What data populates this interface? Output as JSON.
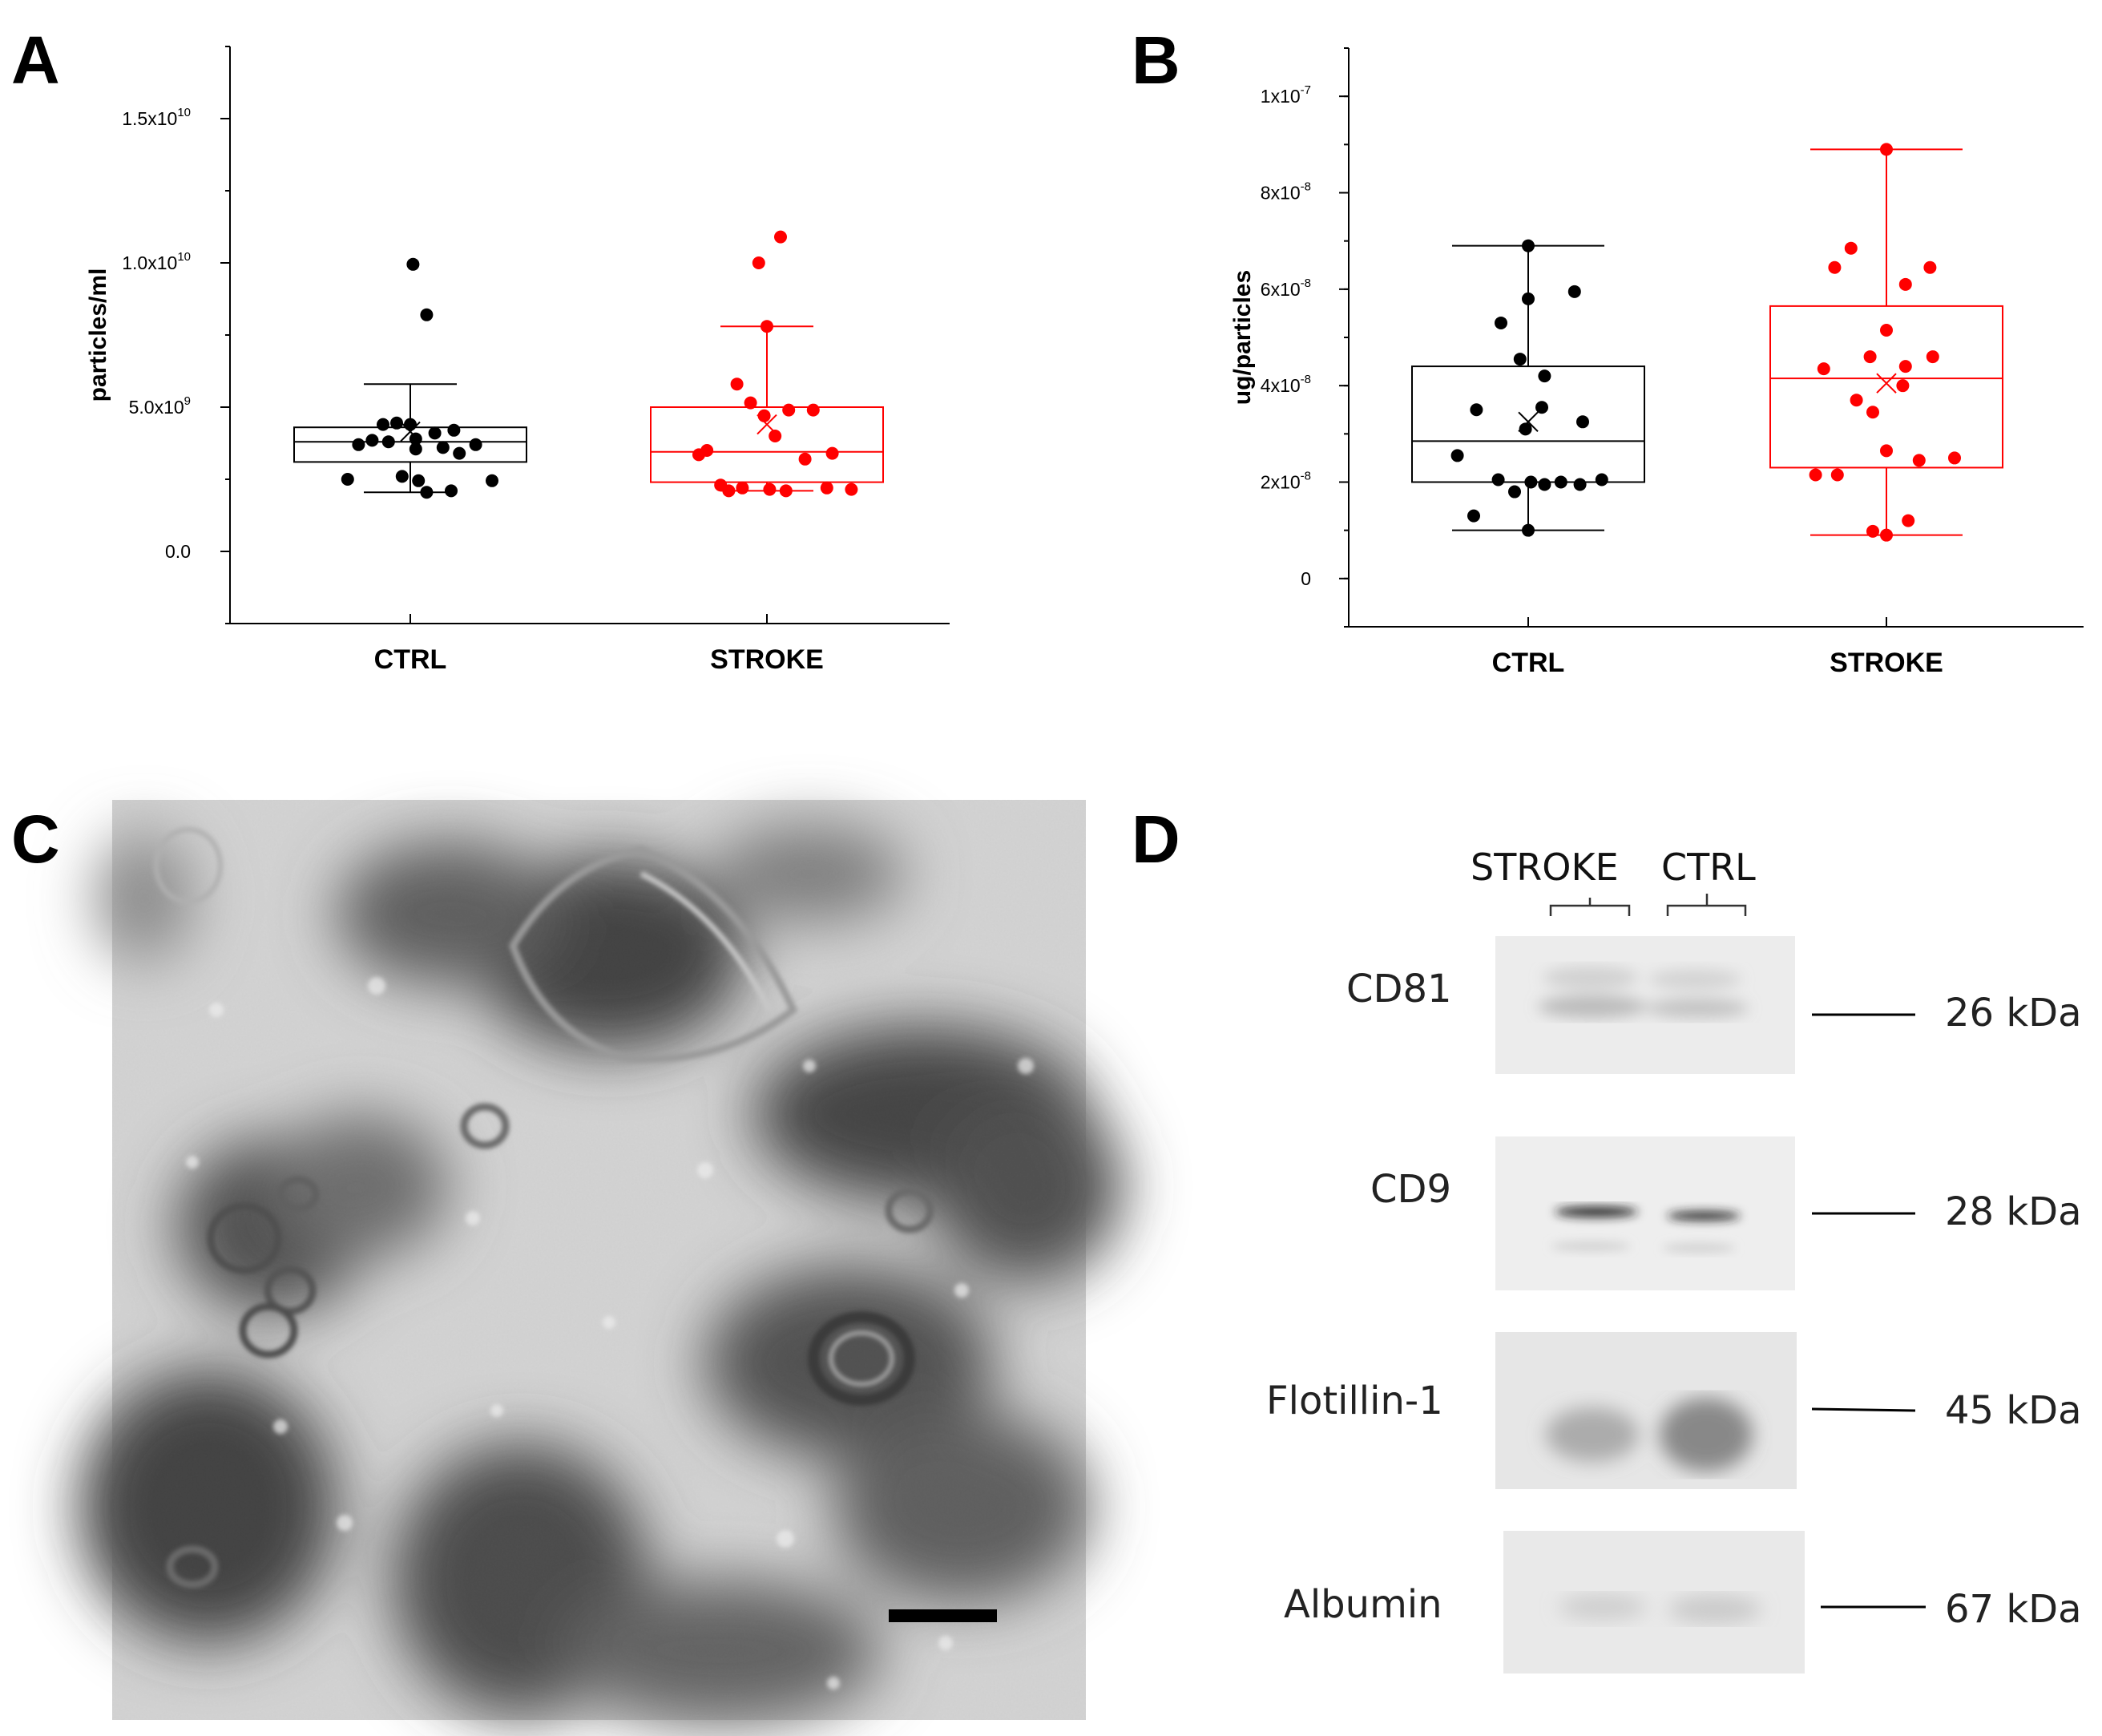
{
  "panels": {
    "a": "A",
    "b": "B",
    "c": "C",
    "d": "D"
  },
  "chart_data": [
    {
      "type": "box",
      "panel": "A",
      "ylabel": "particles/ml",
      "ylim": [
        -2500000000.0,
        17500000000.0
      ],
      "yticks": [
        {
          "v": 0,
          "base": "0.0",
          "exp": ""
        },
        {
          "v": 5000000000.0,
          "base": "5.0x10",
          "exp": "9"
        },
        {
          "v": 10000000000.0,
          "base": "1.0x10",
          "exp": "10"
        },
        {
          "v": 15000000000.0,
          "base": "1.5x10",
          "exp": "10"
        }
      ],
      "categories": [
        "CTRL",
        "STROKE"
      ],
      "series": [
        {
          "category": "CTRL",
          "color": "#000000",
          "box": {
            "q1": 3100000000.0,
            "median": 3800000000.0,
            "q3": 4300000000.0,
            "whisker_low": 2050000000.0,
            "whisker_high": 5800000000.0,
            "mean": 4150000000.0
          },
          "points": [
            {
              "x": -0.46,
              "y": 2500000000.0
            },
            {
              "x": -0.38,
              "y": 3700000000.0
            },
            {
              "x": -0.28,
              "y": 3850000000.0
            },
            {
              "x": -0.2,
              "y": 4400000000.0
            },
            {
              "x": -0.16,
              "y": 3800000000.0
            },
            {
              "x": -0.1,
              "y": 4450000000.0
            },
            {
              "x": -0.06,
              "y": 2600000000.0
            },
            {
              "x": 0.0,
              "y": 4400000000.0
            },
            {
              "x": 0.02,
              "y": 9950000000.0
            },
            {
              "x": 0.04,
              "y": 3900000000.0
            },
            {
              "x": 0.04,
              "y": 3550000000.0
            },
            {
              "x": 0.06,
              "y": 2450000000.0
            },
            {
              "x": 0.12,
              "y": 8200000000.0
            },
            {
              "x": 0.12,
              "y": 2050000000.0
            },
            {
              "x": 0.18,
              "y": 4100000000.0
            },
            {
              "x": 0.24,
              "y": 3600000000.0
            },
            {
              "x": 0.3,
              "y": 2100000000.0
            },
            {
              "x": 0.32,
              "y": 4200000000.0
            },
            {
              "x": 0.36,
              "y": 3400000000.0
            },
            {
              "x": 0.48,
              "y": 3700000000.0
            },
            {
              "x": 0.6,
              "y": 2450000000.0
            }
          ]
        },
        {
          "category": "STROKE",
          "color": "#ff0000",
          "box": {
            "q1": 2400000000.0,
            "median": 3450000000.0,
            "q3": 5000000000.0,
            "whisker_low": 2100000000.0,
            "whisker_high": 7800000000.0,
            "mean": 4400000000.0
          },
          "points": [
            {
              "x": -0.5,
              "y": 3350000000.0
            },
            {
              "x": -0.44,
              "y": 3500000000.0
            },
            {
              "x": -0.34,
              "y": 2300000000.0
            },
            {
              "x": -0.28,
              "y": 2100000000.0
            },
            {
              "x": -0.22,
              "y": 5800000000.0
            },
            {
              "x": -0.18,
              "y": 2200000000.0
            },
            {
              "x": -0.12,
              "y": 5150000000.0
            },
            {
              "x": -0.06,
              "y": 10000000000.0
            },
            {
              "x": -0.02,
              "y": 4700000000.0
            },
            {
              "x": 0.0,
              "y": 7800000000.0
            },
            {
              "x": 0.02,
              "y": 2150000000.0
            },
            {
              "x": 0.06,
              "y": 4000000000.0
            },
            {
              "x": 0.1,
              "y": 10900000000.0
            },
            {
              "x": 0.14,
              "y": 2100000000.0
            },
            {
              "x": 0.16,
              "y": 4900000000.0
            },
            {
              "x": 0.28,
              "y": 3200000000.0
            },
            {
              "x": 0.34,
              "y": 4900000000.0
            },
            {
              "x": 0.44,
              "y": 2200000000.0
            },
            {
              "x": 0.48,
              "y": 3400000000.0
            },
            {
              "x": 0.62,
              "y": 2150000000.0
            }
          ]
        }
      ]
    },
    {
      "type": "box",
      "panel": "B",
      "ylabel": "ug/particles",
      "ylim": [
        -1e-08,
        1.1e-07
      ],
      "yticks": [
        {
          "v": 0,
          "base": "0",
          "exp": ""
        },
        {
          "v": 2e-08,
          "base": "2x10",
          "exp": "-8"
        },
        {
          "v": 4e-08,
          "base": "4x10",
          "exp": "-8"
        },
        {
          "v": 6e-08,
          "base": "6x10",
          "exp": "-8"
        },
        {
          "v": 8e-08,
          "base": "8x10",
          "exp": "-8"
        },
        {
          "v": 1e-07,
          "base": "1x10",
          "exp": "-7"
        }
      ],
      "categories": [
        "CTRL",
        "STROKE"
      ],
      "series": [
        {
          "category": "CTRL",
          "color": "#000000",
          "box": {
            "q1": 2e-08,
            "median": 2.85e-08,
            "q3": 4.4e-08,
            "whisker_low": 1e-08,
            "whisker_high": 6.9e-08,
            "mean": 3.25e-08
          },
          "points": [
            {
              "x": -0.52,
              "y": 2.55e-08
            },
            {
              "x": -0.4,
              "y": 1.3e-08
            },
            {
              "x": -0.38,
              "y": 3.5e-08
            },
            {
              "x": -0.22,
              "y": 2.05e-08
            },
            {
              "x": -0.2,
              "y": 5.3e-08
            },
            {
              "x": -0.1,
              "y": 1.8e-08
            },
            {
              "x": -0.06,
              "y": 4.55e-08
            },
            {
              "x": -0.02,
              "y": 3.1e-08
            },
            {
              "x": 0.0,
              "y": 6.9e-08
            },
            {
              "x": 0.0,
              "y": 5.8e-08
            },
            {
              "x": 0.0,
              "y": 1e-08
            },
            {
              "x": 0.02,
              "y": 2e-08
            },
            {
              "x": 0.1,
              "y": 3.55e-08
            },
            {
              "x": 0.12,
              "y": 4.2e-08
            },
            {
              "x": 0.12,
              "y": 1.95e-08
            },
            {
              "x": 0.24,
              "y": 2e-08
            },
            {
              "x": 0.34,
              "y": 5.95e-08
            },
            {
              "x": 0.38,
              "y": 1.95e-08
            },
            {
              "x": 0.4,
              "y": 3.25e-08
            },
            {
              "x": 0.54,
              "y": 2.05e-08
            }
          ]
        },
        {
          "category": "STROKE",
          "color": "#ff0000",
          "box": {
            "q1": 2.3e-08,
            "median": 4.15e-08,
            "q3": 5.65e-08,
            "whisker_low": 9e-09,
            "whisker_high": 8.9e-08,
            "mean": 4.05e-08
          },
          "points": [
            {
              "x": -0.52,
              "y": 2.15e-08
            },
            {
              "x": -0.46,
              "y": 4.35e-08
            },
            {
              "x": -0.36,
              "y": 2.15e-08
            },
            {
              "x": -0.26,
              "y": 6.85e-08
            },
            {
              "x": -0.12,
              "y": 4.6e-08
            },
            {
              "x": -0.1,
              "y": 3.45e-08
            },
            {
              "x": -0.1,
              "y": 9.8e-09
            },
            {
              "x": 0.0,
              "y": 8.9e-08
            },
            {
              "x": 0.0,
              "y": 5.15e-08
            },
            {
              "x": 0.0,
              "y": 2.65e-08
            },
            {
              "x": 0.0,
              "y": 9e-09
            },
            {
              "x": 0.12,
              "y": 4e-08
            },
            {
              "x": 0.14,
              "y": 4.4e-08
            },
            {
              "x": 0.16,
              "y": 1.2e-08
            },
            {
              "x": -0.22,
              "y": 3.7e-08
            },
            {
              "x": 0.14,
              "y": 6.1e-08
            },
            {
              "x": 0.24,
              "y": 2.45e-08
            },
            {
              "x": 0.32,
              "y": 6.45e-08
            },
            {
              "x": 0.34,
              "y": 4.6e-08
            },
            {
              "x": 0.5,
              "y": 2.5e-08
            },
            {
              "x": -0.38,
              "y": 6.45e-08
            }
          ]
        }
      ]
    }
  ],
  "blot": {
    "lanes": [
      "STROKE",
      "CTRL"
    ],
    "rows": [
      {
        "protein": "CD81",
        "marker": "26 kDa"
      },
      {
        "protein": "CD9",
        "marker": "28 kDa"
      },
      {
        "protein": "Flotillin-1",
        "marker": "45 kDa"
      },
      {
        "protein": "Albumin",
        "marker": "67 kDa"
      }
    ]
  }
}
